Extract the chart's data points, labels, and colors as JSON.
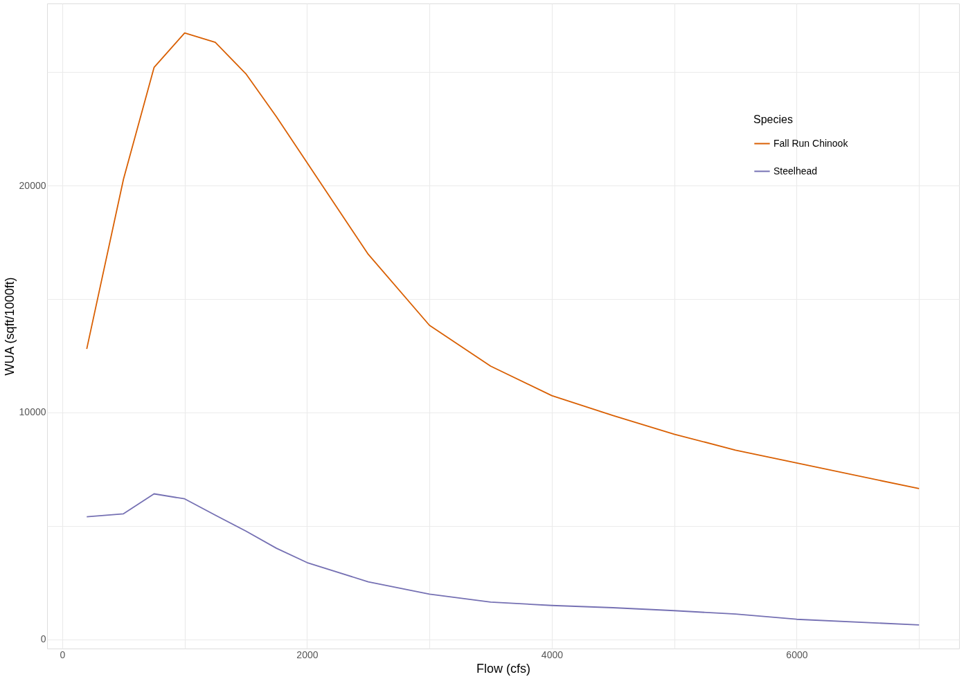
{
  "chart_data": {
    "type": "line",
    "xlabel": "Flow (cfs)",
    "ylabel": "WUA (sqft/1000ft)",
    "legend_title": "Species",
    "x": [
      200,
      500,
      750,
      1000,
      1250,
      1500,
      1750,
      2000,
      2500,
      3000,
      3500,
      4000,
      4500,
      5000,
      5500,
      6000,
      7000
    ],
    "series": [
      {
        "name": "Fall Run Chinook",
        "color": "#d95f02",
        "values": [
          12800,
          20280,
          25210,
          26730,
          26320,
          24930,
          23030,
          21010,
          16970,
          13840,
          12040,
          10740,
          9860,
          9040,
          8340,
          7770,
          6640
        ]
      },
      {
        "name": "Steelhead",
        "color": "#7570b3",
        "values": [
          5400,
          5530,
          6410,
          6190,
          5470,
          4770,
          4010,
          3380,
          2530,
          1990,
          1640,
          1490,
          1390,
          1260,
          1110,
          880,
          630
        ]
      }
    ],
    "xlim": [
      -124,
      7327
    ],
    "ylim": [
      -410,
      28030
    ],
    "xticks": [
      0,
      {
        "value": 1000,
        "label": null
      },
      2000,
      {
        "value": 3000,
        "label": null
      },
      4000,
      {
        "value": 5000,
        "label": null
      },
      6000,
      {
        "value": 7000,
        "label": null
      }
    ],
    "yticks": [
      0,
      {
        "value": 5000,
        "label": null
      },
      10000,
      {
        "value": 15000,
        "label": null
      },
      20000,
      {
        "value": 25000,
        "label": null
      }
    ],
    "grid": true,
    "legend": "top right",
    "marker": "none",
    "line_style": "solid"
  }
}
